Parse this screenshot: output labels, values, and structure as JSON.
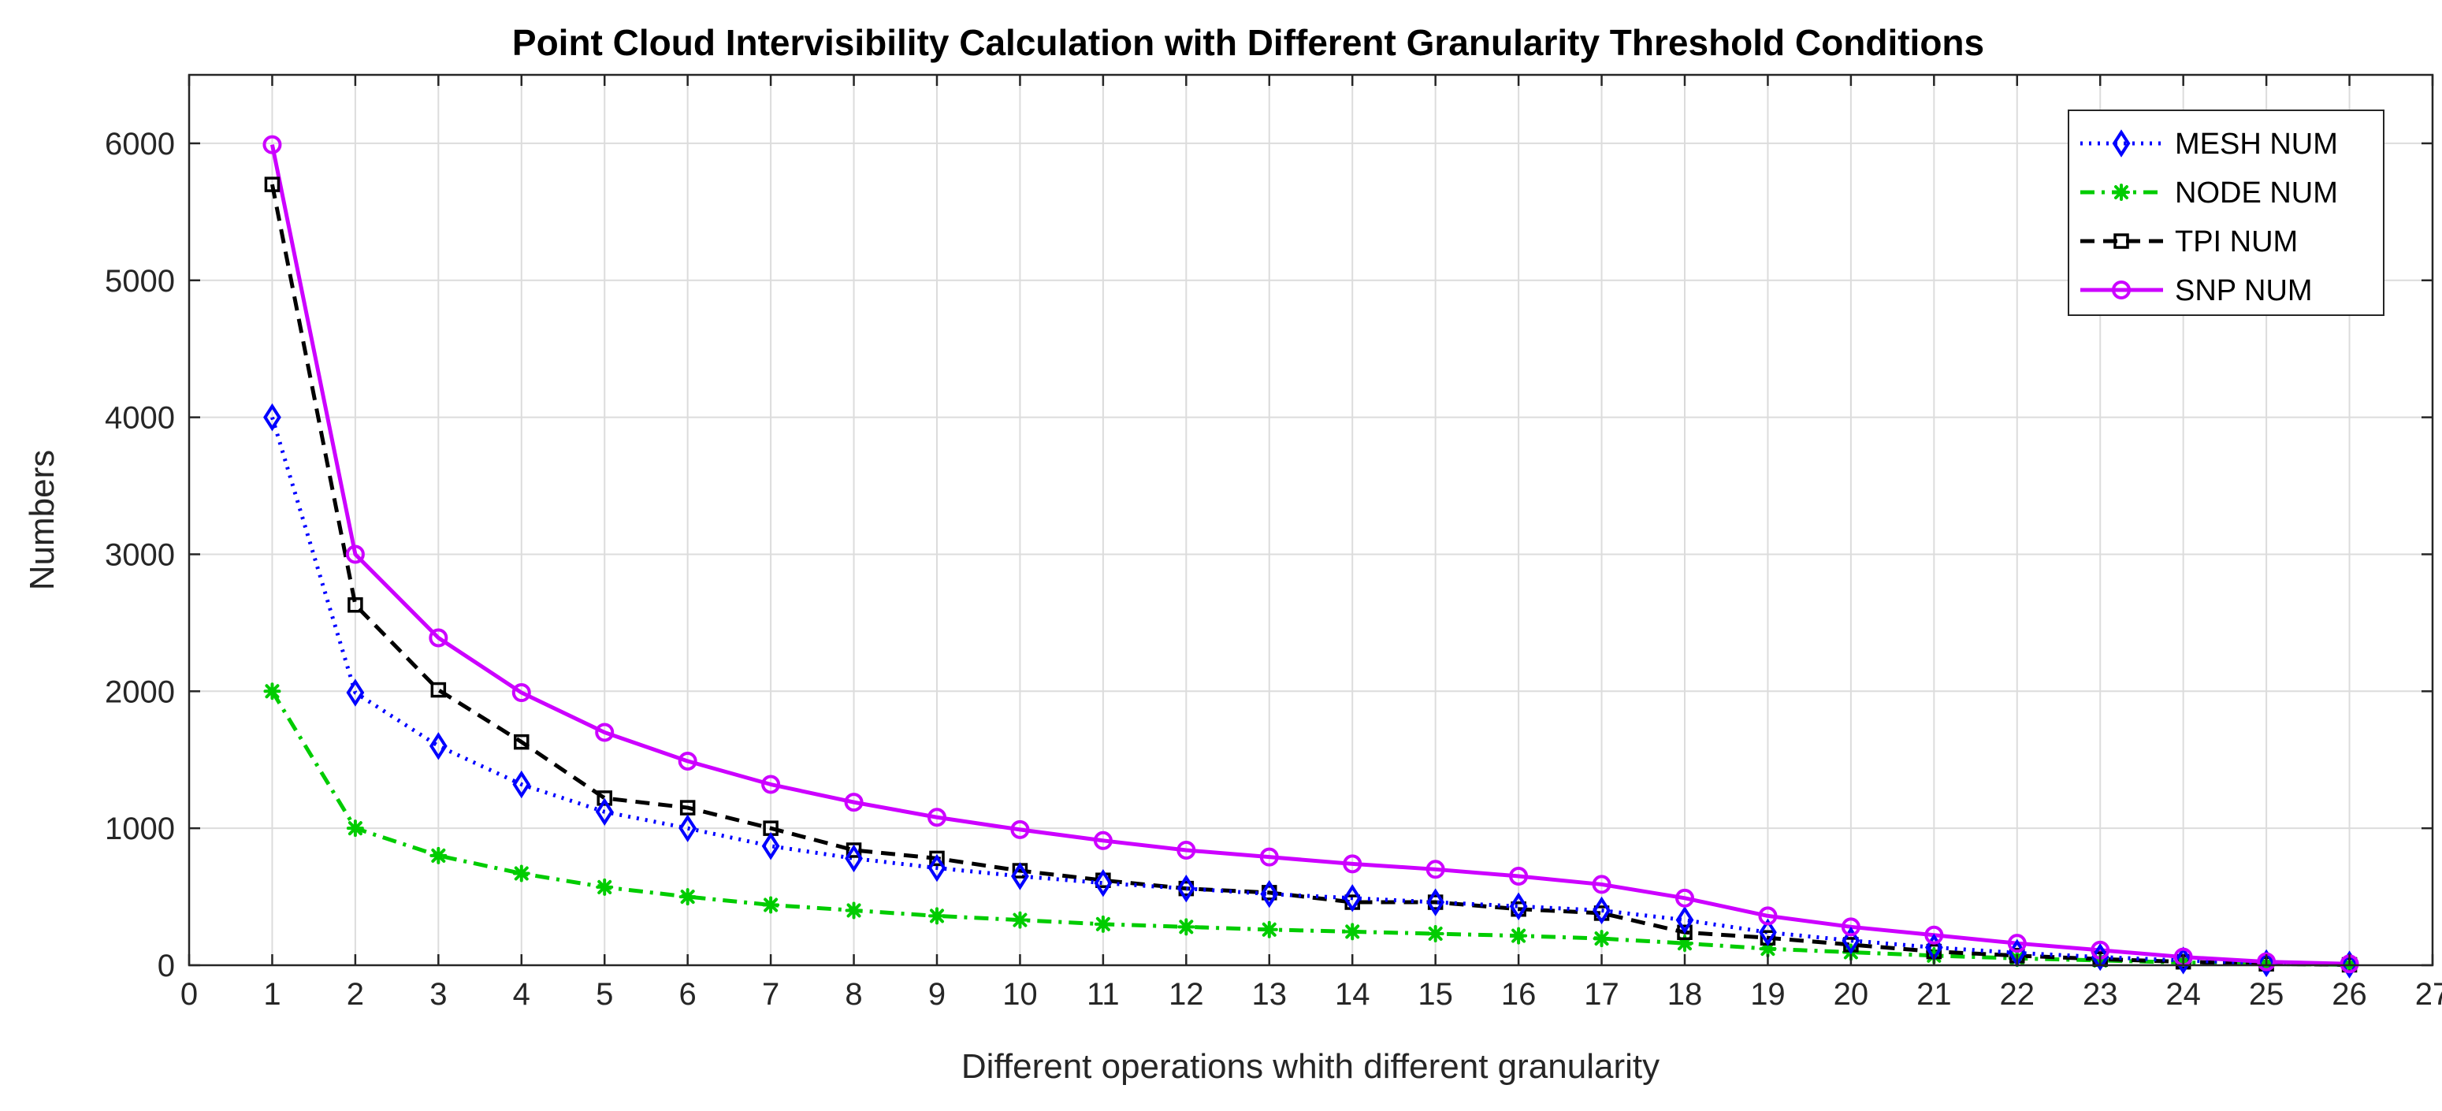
{
  "chart_data": {
    "type": "line",
    "title": "Point Cloud Intervisibility Calculation with Different Granularity Threshold Conditions",
    "xlabel": "Different operations whith different granularity",
    "ylabel": "Numbers",
    "xlim": [
      0,
      27
    ],
    "ylim": [
      0,
      6500
    ],
    "grid": true,
    "legend_position": "top-right",
    "x_ticks": [
      "0",
      "1",
      "2",
      "3",
      "4",
      "5",
      "6",
      "7",
      "8",
      "9",
      "10",
      "11",
      "12",
      "13",
      "14",
      "15",
      "16",
      "17",
      "18",
      "19",
      "20",
      "21",
      "22",
      "23",
      "24",
      "25",
      "26",
      "27"
    ],
    "y_ticks": [
      "0",
      "1000",
      "2000",
      "3000",
      "4000",
      "5000",
      "6000"
    ],
    "x": [
      1,
      2,
      3,
      4,
      5,
      6,
      7,
      8,
      9,
      10,
      11,
      12,
      13,
      14,
      15,
      16,
      17,
      18,
      19,
      20,
      21,
      22,
      23,
      24,
      25,
      26
    ],
    "series": [
      {
        "name": "MESH NUM",
        "color": "#0000ff",
        "line_style": "dotted",
        "marker": "diamond",
        "values": [
          4000,
          1990,
          1600,
          1320,
          1120,
          1000,
          870,
          780,
          710,
          650,
          600,
          560,
          520,
          490,
          460,
          430,
          400,
          330,
          240,
          180,
          130,
          90,
          60,
          35,
          15,
          5
        ]
      },
      {
        "name": "NODE NUM",
        "color": "#00cc00",
        "line_style": "dashdot",
        "marker": "star",
        "values": [
          2000,
          1000,
          800,
          670,
          570,
          500,
          440,
          400,
          360,
          330,
          300,
          280,
          260,
          245,
          230,
          215,
          195,
          160,
          120,
          95,
          70,
          50,
          35,
          20,
          10,
          3
        ]
      },
      {
        "name": "TPI NUM",
        "color": "#000000",
        "line_style": "dashed",
        "marker": "square",
        "values": [
          5700,
          2630,
          2010,
          1630,
          1220,
          1150,
          1000,
          840,
          780,
          690,
          620,
          560,
          530,
          460,
          460,
          410,
          380,
          240,
          200,
          150,
          100,
          70,
          45,
          25,
          10,
          3
        ]
      },
      {
        "name": "SNP NUM",
        "color": "#cc00ff",
        "line_style": "solid",
        "marker": "circle",
        "values": [
          5990,
          3000,
          2390,
          1990,
          1700,
          1490,
          1320,
          1190,
          1080,
          990,
          910,
          840,
          790,
          740,
          700,
          650,
          590,
          490,
          360,
          280,
          220,
          160,
          110,
          60,
          25,
          10
        ]
      }
    ]
  }
}
